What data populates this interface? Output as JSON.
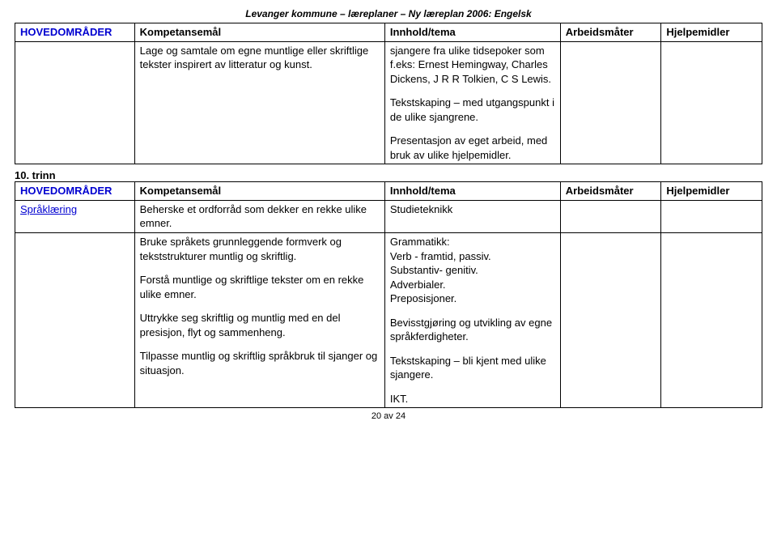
{
  "header": "Levanger kommune – læreplaner – Ny læreplan 2006: Engelsk",
  "footer": "20 av 24",
  "columns": [
    "HOVEDOMRÅDER",
    "Kompetansemål",
    "Innhold/tema",
    "Arbeidsmåter",
    "Hjelpemidler"
  ],
  "top": {
    "col2": "Lage og samtale om egne muntlige eller skriftlige tekster inspirert av litteratur og kunst.",
    "col3_p1": "sjangere fra ulike tidsepoker som f.eks: Ernest Hemingway, Charles Dickens, J R R Tolkien, C S Lewis.",
    "col3_p2": "Tekstskaping – med utgangspunkt i de ulike sjangrene.",
    "col3_p3": "Presentasjon av eget arbeid, med bruk av ulike hjelpemidler."
  },
  "section_label": "10. trinn",
  "bottom": {
    "row1_col1": "Språklæring",
    "row1_col2": "Beherske et ordforråd som dekker en rekke ulike emner.",
    "row1_col3": "Studieteknikk",
    "row2_col2_p1": "Bruke språkets grunnleggende formverk og tekststrukturer muntlig og skriftlig.",
    "row2_col2_p2": "Forstå muntlige og skriftlige tekster om en rekke ulike emner.",
    "row2_col2_p3": "Uttrykke seg skriftlig og muntlig med en del presisjon, flyt og sammenheng.",
    "row2_col2_p4": "Tilpasse muntlig og skriftlig språkbruk til sjanger og situasjon.",
    "row2_col3_p1": "Grammatikk:",
    "row2_col3_p2": "Verb - framtid, passiv.",
    "row2_col3_p3": "Substantiv- genitiv.",
    "row2_col3_p4": "Adverbialer.",
    "row2_col3_p5": "Preposisjoner.",
    "row2_col3_p6": "Bevisstgjøring og utvikling av egne språkferdigheter.",
    "row2_col3_p7": "Tekstskaping – bli kjent med ulike sjangere.",
    "row2_col3_p8": "IKT."
  }
}
